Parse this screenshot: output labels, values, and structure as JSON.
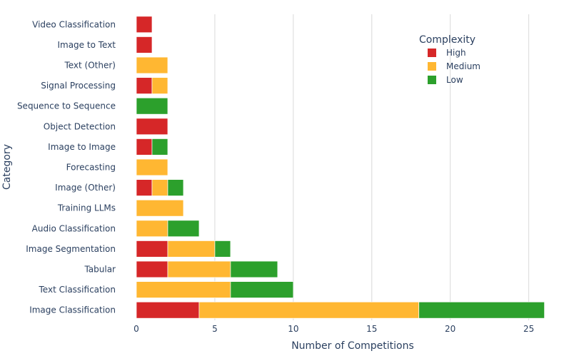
{
  "chart_data": {
    "type": "bar",
    "orientation": "horizontal",
    "stacked": true,
    "title": "",
    "xlabel": "Number of Competitions",
    "ylabel": "Category",
    "xlim": [
      0,
      26.2
    ],
    "xticks": [
      0,
      5,
      10,
      15,
      20,
      25
    ],
    "grid": true,
    "legend": {
      "title": "Complexity",
      "placement": "top-right"
    },
    "categories": [
      "Video Classification",
      "Image to Text",
      "Text (Other)",
      "Signal Processing",
      "Sequence to Sequence",
      "Object Detection",
      "Image to Image",
      "Forecasting",
      "Image (Other)",
      "Training LLMs",
      "Audio Classification",
      "Image Segmentation",
      "Tabular",
      "Text Classification",
      "Image Classification"
    ],
    "series": [
      {
        "name": "High",
        "color": "#d62728",
        "values": [
          1,
          1,
          0,
          1,
          0,
          2,
          1,
          0,
          1,
          0,
          0,
          2,
          2,
          0,
          4
        ]
      },
      {
        "name": "Medium",
        "color": "#ffb732",
        "values": [
          0,
          0,
          2,
          1,
          0,
          0,
          0,
          2,
          1,
          3,
          2,
          3,
          4,
          6,
          14
        ]
      },
      {
        "name": "Low",
        "color": "#2ca02c",
        "values": [
          0,
          0,
          0,
          0,
          2,
          0,
          1,
          0,
          1,
          0,
          2,
          1,
          3,
          4,
          8
        ]
      }
    ]
  }
}
